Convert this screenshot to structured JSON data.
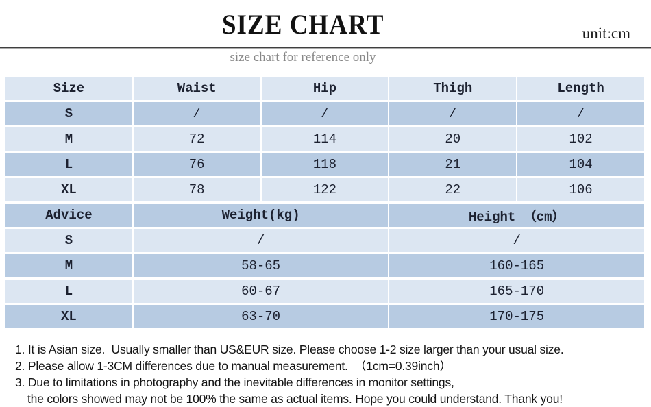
{
  "header": {
    "title": "SIZE CHART",
    "unit": "unit:cm",
    "subtitle": "size chart for reference only"
  },
  "colors": {
    "row_light": "#dce6f2",
    "row_dark": "#b7cbe2",
    "divider": "#3f3f3f",
    "subtitle_gray": "#878787",
    "text": "#1c2130"
  },
  "chart_data": {
    "type": "table",
    "title": "SIZE CHART",
    "unit": "cm",
    "measurements": {
      "columns": [
        "Size",
        "Waist",
        "Hip",
        "Thigh",
        "Length"
      ],
      "rows": [
        [
          "S",
          "/",
          "/",
          "/",
          "/"
        ],
        [
          "M",
          "72",
          "114",
          "20",
          "102"
        ],
        [
          "L",
          "76",
          "118",
          "21",
          "104"
        ],
        [
          "XL",
          "78",
          "122",
          "22",
          "106"
        ]
      ]
    },
    "advice": {
      "columns": [
        "Advice",
        "Weight(kg)",
        "Height （cm）"
      ],
      "rows": [
        [
          "S",
          "/",
          "/"
        ],
        [
          "M",
          "58-65",
          "160-165"
        ],
        [
          "L",
          "60-67",
          "165-170"
        ],
        [
          "XL",
          "63-70",
          "170-175"
        ]
      ]
    }
  },
  "notes": [
    "1. It is Asian size.  Usually smaller than US&EUR size. Please choose 1-2 size larger than your usual size.",
    "2. Please allow 1-3CM differences due to manual measurement.  （1cm=0.39inch）",
    "3. Due to limitations in photography and the inevitable differences in monitor settings,",
    "the colors showed may not be 100% the same as actual items. Hope you could understand. Thank you!"
  ]
}
